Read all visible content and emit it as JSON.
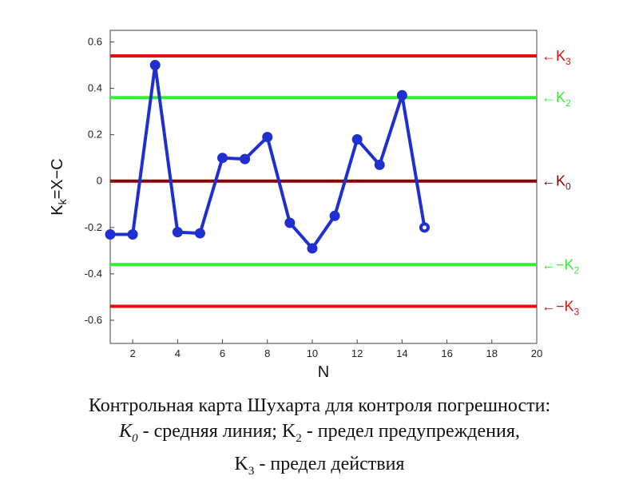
{
  "chart_data": {
    "type": "line",
    "xlabel": "N",
    "ylabel_main": "K",
    "ylabel_sub": "k",
    "ylabel_rest": "=X−C",
    "xlim": [
      1,
      20
    ],
    "ylim": [
      -0.7,
      0.65
    ],
    "xticks": [
      2,
      4,
      6,
      8,
      10,
      12,
      14,
      16,
      18,
      20
    ],
    "yticks": [
      0.6,
      0.4,
      0.2,
      0,
      -0.2,
      -0.4,
      -0.6
    ],
    "ytick_labels": [
      "0.6",
      "0.4",
      "0.2",
      "0",
      "-0.2",
      "-0.4",
      "-0.6"
    ],
    "grid": false,
    "series": [
      {
        "color": "#1f2fd0",
        "x": [
          1,
          2,
          3,
          4,
          5,
          6,
          7,
          8,
          9,
          10,
          11,
          12,
          13,
          14,
          15
        ],
        "y": [
          -0.23,
          -0.23,
          0.5,
          -0.22,
          -0.225,
          0.1,
          0.095,
          0.19,
          -0.18,
          -0.29,
          -0.15,
          0.18,
          0.07,
          0.37,
          -0.2
        ]
      }
    ],
    "reference_lines": [
      {
        "y": 0.54,
        "color": "#e01010",
        "label_main": "←K",
        "label_sub": "3"
      },
      {
        "y": 0.36,
        "color": "#33ee33",
        "label_main": "←K",
        "label_sub": "2"
      },
      {
        "y": 0,
        "color": "#8b0000",
        "label_main": "←K",
        "label_sub": "0"
      },
      {
        "y": -0.36,
        "color": "#33ee33",
        "label_main": "←−K",
        "label_sub": "2"
      },
      {
        "y": -0.54,
        "color": "#e01010",
        "label_main": "←−K",
        "label_sub": "3"
      }
    ]
  },
  "caption": {
    "line1": "Контрольная карта Шухарта для контроля погрешности:",
    "k0_main": "K",
    "k0_sub": "0",
    "k0_text": " - средняя линия; ",
    "k2_main": "K",
    "k2_sub": "2",
    "k2_text": " - предел предупреждения,",
    "k3_main": "K",
    "k3_sub": "3",
    "k3_text": " - предел действия"
  }
}
